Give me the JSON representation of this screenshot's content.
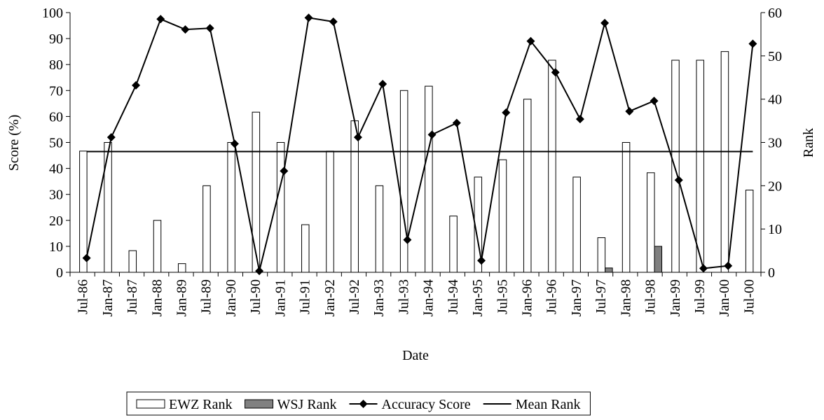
{
  "chart_data": {
    "type": "bar",
    "x_label": "Date",
    "y_label": "Score (%)",
    "y2_label": "Rank",
    "categories": [
      "Jul-86",
      "Jan-87",
      "Jul-87",
      "Jan-88",
      "Jan-89",
      "Jul-89",
      "Jan-90",
      "Jul-90",
      "Jan-91",
      "Jul-91",
      "Jan-92",
      "Jul-92",
      "Jan-93",
      "Jul-93",
      "Jan-94",
      "Jul-94",
      "Jan-95",
      "Jul-95",
      "Jan-96",
      "Jul-96",
      "Jan-97",
      "Jul-97",
      "Jan-98",
      "Jul-98",
      "Jan-99",
      "Jul-99",
      "Jan-00",
      "Jul-00"
    ],
    "ylim": [
      0,
      100
    ],
    "yticks": [
      0,
      10,
      20,
      30,
      40,
      50,
      60,
      70,
      80,
      90,
      100
    ],
    "y2lim": [
      0,
      60
    ],
    "y2ticks": [
      0,
      10,
      20,
      30,
      40,
      50,
      60
    ],
    "legend": "bottom",
    "series": [
      {
        "name": "EWZ Rank",
        "type": "bar",
        "axis": "y2",
        "color": "#ffffff",
        "values": [
          28,
          30,
          5,
          12,
          2,
          20,
          30,
          37,
          30,
          11,
          28,
          35,
          20,
          42,
          43,
          13,
          22,
          26,
          40,
          49,
          22,
          8,
          30,
          23,
          49,
          49,
          51,
          19
        ]
      },
      {
        "name": "WSJ Rank",
        "type": "bar",
        "axis": "y2",
        "color": "#808080",
        "values": [
          null,
          null,
          null,
          null,
          null,
          null,
          null,
          null,
          null,
          null,
          null,
          null,
          null,
          null,
          null,
          null,
          null,
          null,
          null,
          null,
          null,
          1,
          null,
          6,
          null,
          null,
          null,
          null
        ]
      },
      {
        "name": "Accuracy Score",
        "type": "line",
        "marker": "diamond",
        "color": "#000000",
        "values": [
          5.5,
          52,
          72,
          97.5,
          93.5,
          94,
          49.5,
          0.5,
          39,
          98,
          96.5,
          52,
          72.5,
          12.5,
          53,
          57.5,
          4.5,
          61.5,
          89,
          77,
          59,
          96,
          62,
          66,
          35.5,
          1.5,
          2.5,
          88
        ]
      },
      {
        "name": "Mean Rank",
        "type": "line",
        "axis": "y2",
        "color": "#000000",
        "values": [
          27.9,
          27.9,
          27.9,
          27.9,
          27.9,
          27.9,
          27.9,
          27.9,
          27.9,
          27.9,
          27.9,
          27.9,
          27.9,
          27.9,
          27.9,
          27.9,
          27.9,
          27.9,
          27.9,
          27.9,
          27.9,
          27.9,
          27.9,
          27.9,
          27.9,
          27.9,
          27.9,
          27.9
        ]
      }
    ]
  }
}
